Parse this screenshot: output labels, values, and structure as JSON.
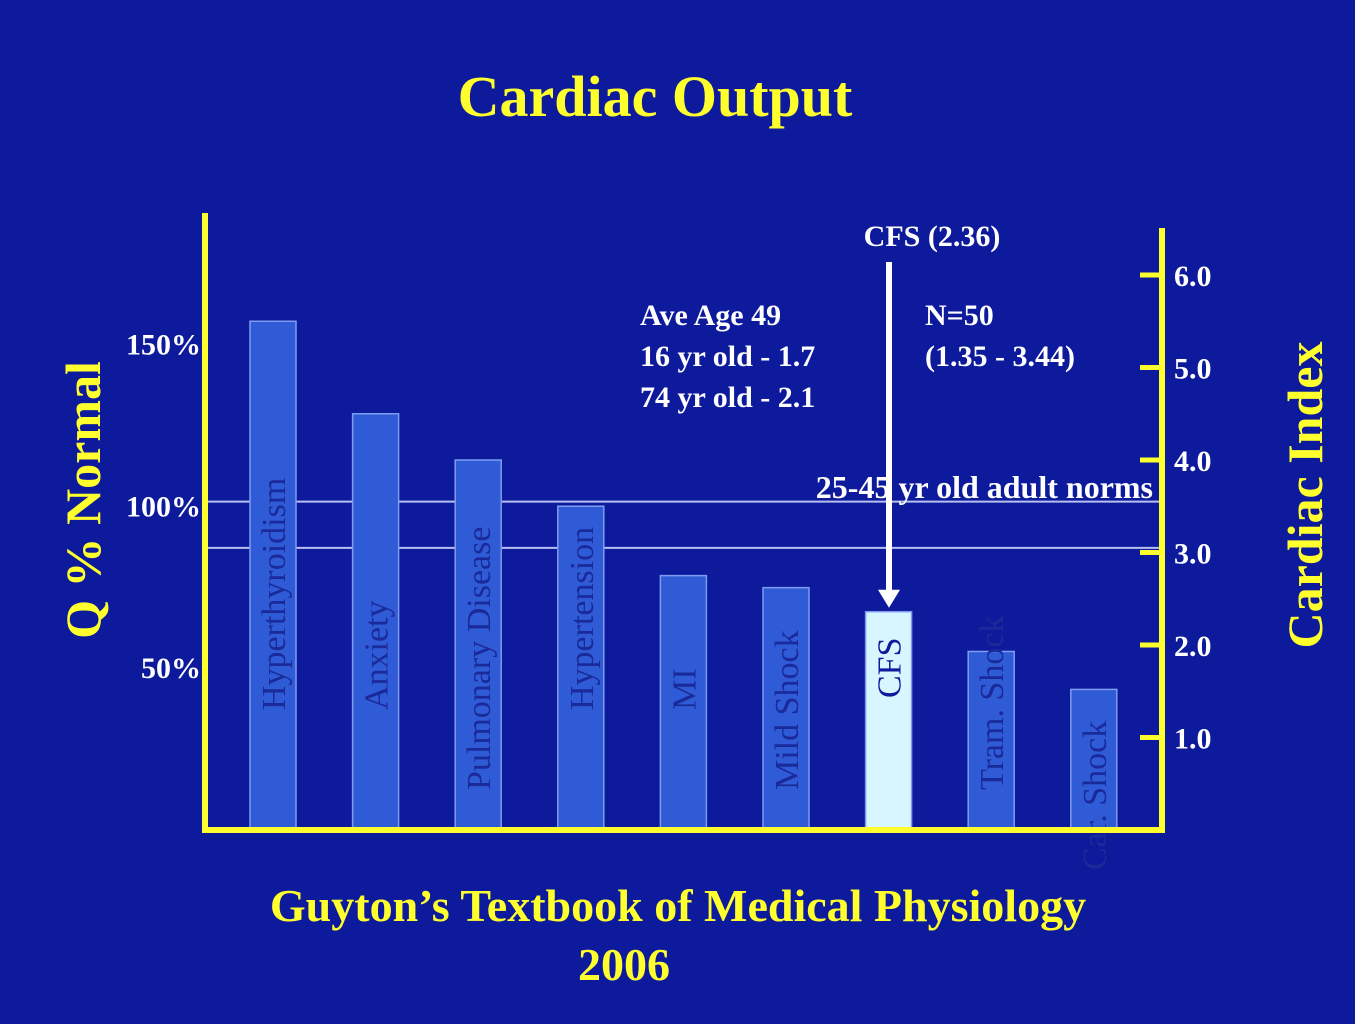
{
  "colors": {
    "background": "#0d1a9c",
    "title": "#ffff2e",
    "axis": "#ffff2e",
    "bar": "#2f5bd6",
    "bar_highlight": "#d8f6ff",
    "norm_lines": "#b8c0f0",
    "annotation": "#ffffff",
    "bar_label": "#1a2a9a"
  },
  "chart_data": {
    "type": "bar",
    "title": "Cardiac Output",
    "categories": [
      "Hyperthyroidism",
      "Anxiety",
      "Pulmonary Disease",
      "Hypertension",
      "MI",
      "Mild Shock",
      "CFS",
      "Tram. Shock",
      "Car. Shock"
    ],
    "values": [
      5.5,
      4.5,
      4.0,
      3.5,
      2.75,
      2.62,
      2.36,
      1.93,
      1.52
    ],
    "highlight": "CFS",
    "y_left": {
      "label": "Q % Normal",
      "ticks": [
        {
          "value": 1.75,
          "label": "50%"
        },
        {
          "value": 3.5,
          "label": "100%"
        },
        {
          "value": 5.25,
          "label": "150%"
        }
      ]
    },
    "y_right": {
      "label": "Cardiac Index",
      "ticks": [
        {
          "value": 1.0,
          "label": "1.0"
        },
        {
          "value": 2.0,
          "label": "2.0"
        },
        {
          "value": 3.0,
          "label": "3.0"
        },
        {
          "value": 4.0,
          "label": "4.0"
        },
        {
          "value": 5.0,
          "label": "5.0"
        },
        {
          "value": 6.0,
          "label": "6.0"
        }
      ]
    },
    "ylim": [
      0,
      6.6
    ],
    "norm_band": {
      "low": 3.05,
      "high": 3.55,
      "label": "25-45 yr old adult norms"
    },
    "annotations": {
      "cfs_arrow": {
        "label": "CFS (2.36)",
        "value": 2.36
      },
      "age_lines": [
        "Ave Age 49",
        "16 yr old - 1.7",
        "74 yr old - 2.1"
      ],
      "n_lines": [
        "N=50",
        "(1.35 - 3.44)"
      ]
    },
    "source": [
      "Guyton’s Textbook of Medical Physiology",
      "2006"
    ]
  }
}
